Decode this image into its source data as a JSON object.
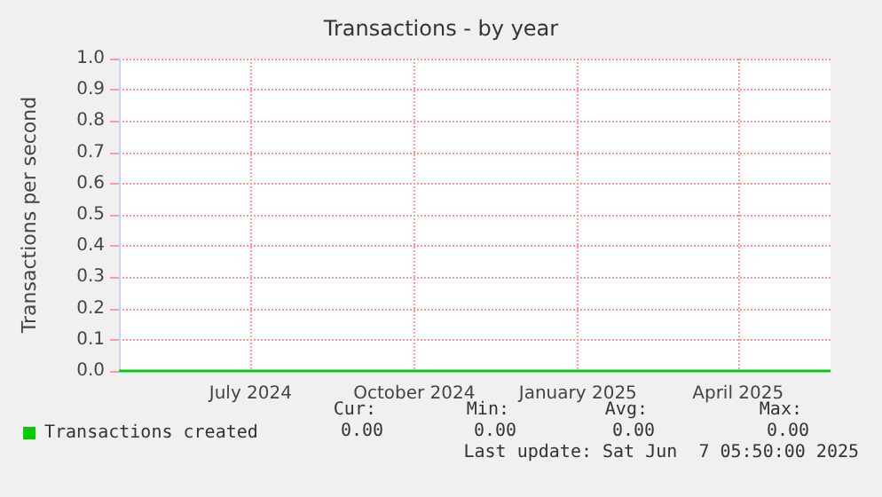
{
  "chart_data": {
    "type": "line",
    "title": "Transactions - by year",
    "ylabel": "Transactions per second",
    "x": [
      "2024-05-03",
      "2024-08-01",
      "2024-11-01",
      "2025-02-01",
      "2025-06-07"
    ],
    "series": [
      {
        "name": "Transactions created",
        "color": "#00cc00",
        "values": [
          0,
          0,
          0,
          0,
          0
        ]
      }
    ],
    "xlim": [
      "2024-05-03",
      "2025-06-07"
    ],
    "xticks": [
      {
        "value": "2024-07-16",
        "label": "July 2024"
      },
      {
        "value": "2024-10-16",
        "label": "October 2024"
      },
      {
        "value": "2025-01-16",
        "label": "January 2025"
      },
      {
        "value": "2025-04-16",
        "label": "April 2025"
      }
    ],
    "ylim": [
      0,
      1
    ],
    "yticks": [
      {
        "value": 0,
        "label": "0.0"
      },
      {
        "value": 0.1,
        "label": "0.1"
      },
      {
        "value": 0.2,
        "label": "0.2"
      },
      {
        "value": 0.3,
        "label": "0.3"
      },
      {
        "value": 0.4,
        "label": "0.4"
      },
      {
        "value": 0.5,
        "label": "0.5"
      },
      {
        "value": 0.6,
        "label": "0.6"
      },
      {
        "value": 0.7,
        "label": "0.7"
      },
      {
        "value": 0.8,
        "label": "0.8"
      },
      {
        "value": 0.9,
        "label": "0.9"
      },
      {
        "value": 1,
        "label": "1.0"
      }
    ],
    "grid": true,
    "legend": "bottom left",
    "marker": "none",
    "line_style": "solid",
    "annotations": [
      "Cur:",
      "Min:",
      "Avg:",
      "Max:",
      "0.00",
      "0.00",
      "0.00",
      "0.00",
      "Last update: Sat Jun  7 05:50:00 2025"
    ]
  }
}
